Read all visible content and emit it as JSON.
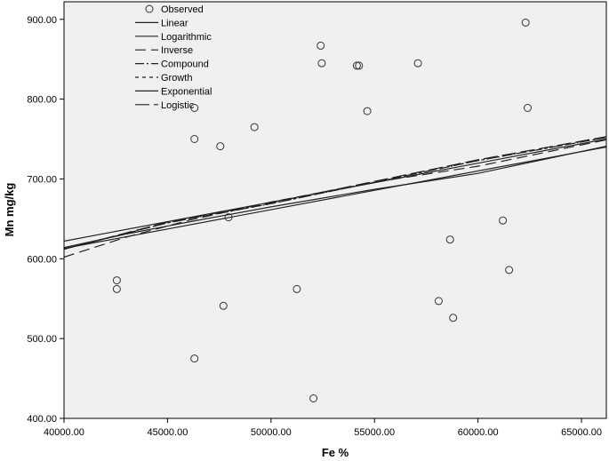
{
  "chart_data": {
    "type": "scatter",
    "title": "",
    "xlabel": "Fe %",
    "ylabel": "Mn mg/kg",
    "xlim": [
      40000,
      66200
    ],
    "ylim": [
      400,
      922
    ],
    "x_ticks": [
      40000,
      45000,
      50000,
      55000,
      60000,
      65000
    ],
    "x_tick_labels": [
      "40000.00",
      "45000.00",
      "50000.00",
      "55000.00",
      "60000.00",
      "65000.00"
    ],
    "y_ticks": [
      400,
      500,
      600,
      700,
      800,
      900
    ],
    "y_tick_labels": [
      "400.00",
      "500.00",
      "600.00",
      "700.00",
      "800.00",
      "900.00"
    ],
    "grid": false,
    "legend_position": "top-left",
    "observed_label": "Observed",
    "observed": [
      {
        "x": 42550,
        "y": 573
      },
      {
        "x": 42550,
        "y": 562
      },
      {
        "x": 46300,
        "y": 789
      },
      {
        "x": 46300,
        "y": 750
      },
      {
        "x": 46300,
        "y": 475
      },
      {
        "x": 47550,
        "y": 741
      },
      {
        "x": 47700,
        "y": 541
      },
      {
        "x": 47950,
        "y": 652
      },
      {
        "x": 49200,
        "y": 765
      },
      {
        "x": 51250,
        "y": 562
      },
      {
        "x": 52050,
        "y": 425
      },
      {
        "x": 52400,
        "y": 867
      },
      {
        "x": 52450,
        "y": 845
      },
      {
        "x": 54150,
        "y": 842
      },
      {
        "x": 54250,
        "y": 842
      },
      {
        "x": 54650,
        "y": 785
      },
      {
        "x": 57100,
        "y": 845
      },
      {
        "x": 58100,
        "y": 547
      },
      {
        "x": 58650,
        "y": 624
      },
      {
        "x": 58800,
        "y": 526
      },
      {
        "x": 61200,
        "y": 648
      },
      {
        "x": 61500,
        "y": 586
      },
      {
        "x": 62300,
        "y": 896
      },
      {
        "x": 62400,
        "y": 789
      }
    ],
    "fits": [
      {
        "name": "Linear",
        "dash": "none",
        "x": [
          40000,
          66200
        ],
        "y": [
          613,
          740
        ]
      },
      {
        "name": "Logarithmic",
        "dash": "none",
        "x": [
          40000,
          43000,
          46000,
          50000,
          55000,
          60000,
          66200
        ],
        "y": [
          614,
          631,
          646,
          665,
          687,
          707,
          741
        ]
      },
      {
        "name": "Inverse",
        "dash": "12,6",
        "x": [
          40000,
          43000,
          46000,
          50000,
          55000,
          60000,
          66200
        ],
        "y": [
          602,
          627,
          648,
          671,
          696,
          716,
          749
        ]
      },
      {
        "name": "Compound",
        "dash": "10,3,2,3",
        "x": [
          40000,
          45000,
          50000,
          55000,
          60000,
          66200
        ],
        "y": [
          612,
          645,
          669,
          696,
          723,
          752
        ]
      },
      {
        "name": "Growth",
        "dash": "4,4",
        "x": [
          40000,
          45000,
          50000,
          55000,
          60000,
          66200
        ],
        "y": [
          612,
          645,
          669,
          696,
          723,
          752
        ]
      },
      {
        "name": "Exponential",
        "dash": "none",
        "x": [
          40000,
          66200
        ],
        "y": [
          622,
          750
        ]
      },
      {
        "name": "Logistic",
        "dash": "16,5",
        "x": [
          40000,
          45000,
          50000,
          55000,
          60000,
          66200
        ],
        "y": [
          612,
          646,
          670,
          697,
          724,
          753
        ]
      }
    ]
  }
}
